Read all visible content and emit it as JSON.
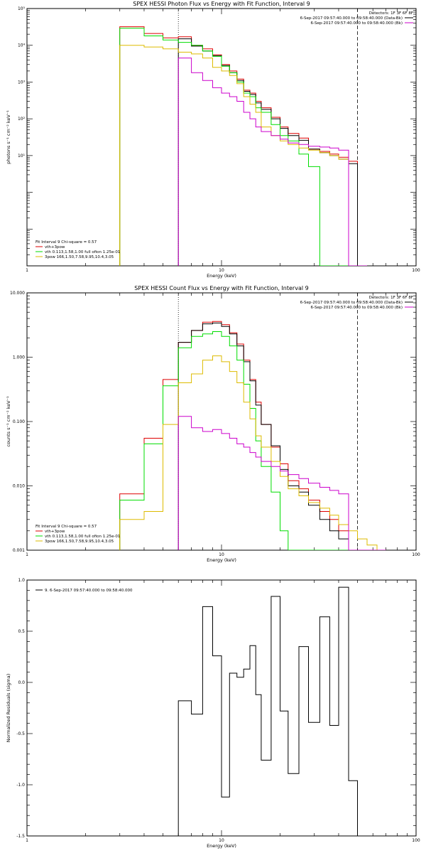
{
  "chart_data": [
    {
      "type": "line",
      "step": true,
      "title": "SPEX HESSI Photon Flux vs Energy with Fit Function, Interval 9",
      "xlabel": "Energy (keV)",
      "ylabel": "photons s⁻¹ cm⁻² keV⁻¹",
      "xscale": "log",
      "yscale": "log",
      "xlim": [
        1,
        100
      ],
      "ylim": [
        0.01,
        100000
      ],
      "x_tick_labels": [
        {
          "v": 1,
          "t": "1"
        },
        {
          "v": 10,
          "t": "10"
        },
        {
          "v": 100,
          "t": "100"
        }
      ],
      "y_tick_labels": [
        {
          "v": 100000,
          "t": "10⁵"
        },
        {
          "v": 10000,
          "t": "10⁴"
        },
        {
          "v": 1000,
          "t": "10³"
        },
        {
          "v": 100,
          "t": "10²"
        },
        {
          "v": 10,
          "t": "10¹"
        }
      ],
      "edges": [
        3.0,
        4.0,
        5.0,
        6.0,
        7.0,
        8.0,
        9.0,
        10.0,
        11.0,
        12.0,
        13.0,
        14.0,
        15.0,
        16.0,
        18.0,
        20.0,
        22.0,
        25.0,
        28.0,
        32.0,
        36.0,
        40.0,
        45.0,
        50.0,
        56.0
      ],
      "vlines": [
        {
          "x": 6.0,
          "style": "dotted"
        },
        {
          "x": 50.0,
          "style": "dashed"
        }
      ],
      "legend_right": {
        "header": "Detectors: 1F 3F 6F 8F",
        "rows": [
          {
            "label": "6-Sep-2017 09:57:40.000 to 09:58:40.000 (Data-Bk)",
            "color": "#000000"
          },
          {
            "label": "6-Sep-2017 09:57:40.000 to 09:58:40.000 (Bk)",
            "color": "#cc00cc"
          }
        ]
      },
      "legend_left": {
        "header": "Fit Interval  9    Chi-square = 0.57",
        "rows": [
          {
            "label": "vth+3pow",
            "color": "#dd0000"
          },
          {
            "label": "vth 0.113,1.58,1.00  full ofion 1.25e-01",
            "color": "#00dd00"
          },
          {
            "label": "3pow 166,1.50,7.58,9.95,10.4,3.05",
            "color": "#ddbb00"
          }
        ]
      },
      "series": [
        {
          "name": "vth+3pow",
          "color": "#dd0000",
          "values": [
            32000,
            21000,
            16000,
            17000,
            10000,
            8000,
            5500,
            3000,
            2000,
            1200,
            600,
            500,
            300,
            200,
            110,
            60,
            40,
            30,
            15,
            13,
            11,
            9,
            7,
            0,
            0
          ]
        },
        {
          "name": "Data-Bk",
          "color": "#000000",
          "values": [
            null,
            null,
            null,
            15000,
            9500,
            7000,
            5200,
            2800,
            1800,
            1100,
            560,
            460,
            270,
            180,
            100,
            55,
            35,
            26,
            15,
            12,
            10,
            8,
            6,
            0,
            0
          ]
        },
        {
          "name": "vth 0.113,1.58,1.00  full ofion 1.25e-01",
          "color": "#00dd00",
          "values": [
            29000,
            18000,
            14000,
            12000,
            10000,
            7000,
            5000,
            2700,
            1800,
            1000,
            500,
            400,
            200,
            150,
            70,
            35,
            25,
            11,
            5,
            0,
            0,
            0,
            0,
            0,
            0
          ]
        },
        {
          "name": "3pow 166,1.50,7.58,9.95,10.4,3.05",
          "color": "#ddbb00",
          "values": [
            10000,
            9000,
            8000,
            6500,
            5800,
            4500,
            2500,
            2000,
            1500,
            900,
            400,
            250,
            150,
            60,
            35,
            25,
            20,
            16,
            14,
            12,
            10,
            8,
            0,
            0,
            0
          ]
        },
        {
          "name": "Bk",
          "color": "#cc00cc",
          "values": [
            null,
            null,
            null,
            4500,
            1800,
            1100,
            700,
            500,
            400,
            300,
            150,
            100,
            60,
            45,
            35,
            28,
            22,
            20,
            18,
            17,
            16,
            14,
            0,
            0,
            0
          ]
        }
      ]
    },
    {
      "type": "line",
      "step": true,
      "title": "SPEX HESSI Count Flux vs Energy with Fit Function, Interval 9",
      "xlabel": "Energy (keV)",
      "ylabel": "counts s⁻¹ cm⁻² keV⁻¹",
      "xscale": "log",
      "yscale": "log",
      "xlim": [
        1,
        100
      ],
      "ylim": [
        0.001,
        10
      ],
      "x_tick_labels": [
        {
          "v": 1,
          "t": "1"
        },
        {
          "v": 10,
          "t": "10"
        },
        {
          "v": 100,
          "t": "100"
        }
      ],
      "y_tick_labels": [
        {
          "v": 10,
          "t": "10.000"
        },
        {
          "v": 1,
          "t": "1.000"
        },
        {
          "v": 0.1,
          "t": "0.100"
        },
        {
          "v": 0.01,
          "t": "0.010"
        },
        {
          "v": 0.001,
          "t": "0.001"
        }
      ],
      "edges": [
        3.0,
        4.0,
        5.0,
        6.0,
        7.0,
        8.0,
        9.0,
        10.0,
        11.0,
        12.0,
        13.0,
        14.0,
        15.0,
        16.0,
        18.0,
        20.0,
        22.0,
        25.0,
        28.0,
        32.0,
        36.0,
        40.0,
        45.0,
        50.0,
        56.0,
        63.0,
        70.0
      ],
      "vlines": [
        {
          "x": 6.0,
          "style": "dotted"
        },
        {
          "x": 50.0,
          "style": "dashed"
        }
      ],
      "legend_right": {
        "header": "Detectors: 1F 3F 6F 8F",
        "rows": [
          {
            "label": "6-Sep-2017 09:57:40.000 to 09:58:40.000 (Data-Bk)",
            "color": "#000000"
          },
          {
            "label": "6-Sep-2017 09:57:40.000 to 09:58:40.000 (Bk)",
            "color": "#cc00cc"
          }
        ]
      },
      "legend_left": {
        "header": "Fit Interval  9    Chi-square = 0.57",
        "rows": [
          {
            "label": "vth+3pow",
            "color": "#dd0000"
          },
          {
            "label": "vth 0.113,1.58,1.00  full ofion 1.25e-01",
            "color": "#00dd00"
          },
          {
            "label": "3pow 166,1.50,7.58,9.95,10.4,3.05",
            "color": "#ddbb00"
          }
        ]
      },
      "series": [
        {
          "name": "vth+3pow",
          "color": "#dd0000",
          "values": [
            0.0075,
            0.055,
            0.45,
            1.7,
            2.6,
            3.5,
            3.6,
            3.2,
            2.4,
            1.6,
            0.9,
            0.45,
            0.2,
            0.09,
            0.04,
            0.022,
            0.012,
            0.009,
            0.006,
            0.004,
            0.003,
            0.002,
            0,
            0,
            0,
            0
          ]
        },
        {
          "name": "Data-Bk",
          "color": "#000000",
          "values": [
            null,
            null,
            null,
            1.7,
            2.6,
            3.3,
            3.4,
            3.0,
            2.3,
            1.5,
            0.85,
            0.43,
            0.18,
            0.09,
            0.042,
            0.018,
            0.01,
            0.008,
            0.005,
            0.003,
            0.002,
            0.0015,
            0,
            0,
            0,
            0
          ]
        },
        {
          "name": "vth 0.113,1.58,1.00  full ofion 1.25e-01",
          "color": "#00dd00",
          "values": [
            0.006,
            0.045,
            0.36,
            1.4,
            2.1,
            2.3,
            2.5,
            2.1,
            1.5,
            0.9,
            0.38,
            0.16,
            0.05,
            0.02,
            0.008,
            0.002,
            0.001,
            0,
            0,
            0,
            0,
            0,
            0,
            0,
            0,
            0
          ]
        },
        {
          "name": "3pow 166,1.50,7.58,9.95,10.4,3.05",
          "color": "#ddbb00",
          "values": [
            0.003,
            0.004,
            0.09,
            0.4,
            0.55,
            0.9,
            1.05,
            0.85,
            0.6,
            0.4,
            0.2,
            0.11,
            0.06,
            0.04,
            0.024,
            0.014,
            0.009,
            0.007,
            0.0055,
            0.0045,
            0.0035,
            0.0025,
            0.002,
            0.0015,
            0.0012,
            0.001
          ]
        },
        {
          "name": "Bk",
          "color": "#cc00cc",
          "values": [
            null,
            null,
            null,
            0.12,
            0.08,
            0.07,
            0.075,
            0.065,
            0.055,
            0.045,
            0.04,
            0.033,
            0.028,
            0.024,
            0.02,
            0.017,
            0.015,
            0.013,
            0.011,
            0.0095,
            0.0085,
            0.0075,
            0,
            0,
            0,
            0
          ]
        }
      ]
    },
    {
      "type": "line",
      "step": true,
      "title": "",
      "xlabel": "Energy (keV)",
      "ylabel": "Normalized Residuals (sigma)",
      "xscale": "log",
      "yscale": "linear",
      "xlim": [
        1,
        100
      ],
      "ylim": [
        -1.5,
        1.0
      ],
      "x_tick_labels": [
        {
          "v": 1,
          "t": "1"
        },
        {
          "v": 10,
          "t": "10"
        },
        {
          "v": 100,
          "t": "100"
        }
      ],
      "y_tick_labels": [
        {
          "v": 1.0,
          "t": "1.0"
        },
        {
          "v": 0.5,
          "t": "0.5"
        },
        {
          "v": 0.0,
          "t": "0.0"
        },
        {
          "v": -0.5,
          "t": "-0.5"
        },
        {
          "v": -1.0,
          "t": "-1.0"
        },
        {
          "v": -1.5,
          "t": "-1.5"
        }
      ],
      "legend_top": {
        "rows": [
          {
            "label": "9.  6-Sep-2017 09:57:40.000 to 09:58:40.000",
            "color": "#000000"
          }
        ]
      },
      "edges": [
        6.0,
        7.0,
        8.0,
        9.0,
        10.0,
        11.0,
        12.0,
        13.0,
        14.0,
        15.0,
        16.0,
        18.0,
        20.0,
        22.0,
        25.0,
        28.0,
        32.0,
        36.0,
        40.0,
        45.0,
        50.0
      ],
      "series": [
        {
          "name": "9.  6-Sep-2017 09:57:40.000 to 09:58:40.000",
          "color": "#000000",
          "values": [
            -0.18,
            -0.31,
            0.74,
            0.26,
            -1.12,
            0.09,
            0.05,
            0.13,
            0.36,
            -0.12,
            -0.76,
            0.84,
            -0.28,
            -0.89,
            0.35,
            -0.39,
            0.64,
            -0.42,
            0.93,
            -0.96
          ]
        }
      ]
    }
  ]
}
